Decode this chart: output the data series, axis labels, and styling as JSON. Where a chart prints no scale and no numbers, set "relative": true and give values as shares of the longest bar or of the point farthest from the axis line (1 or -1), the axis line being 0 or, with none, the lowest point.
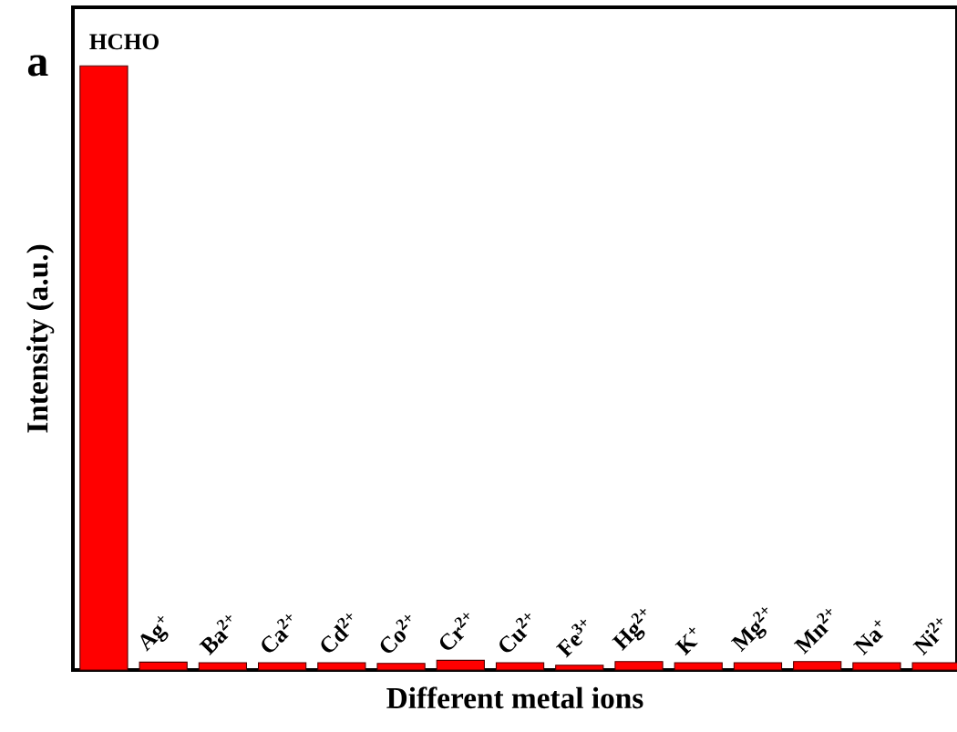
{
  "chart_data": {
    "type": "bar",
    "relative": true,
    "xlabel": "Different metal ions",
    "ylabel": "Intensity (a.u.)",
    "annotations": [
      "a"
    ],
    "categories": [
      "HCHO",
      "Ag$^{+}$",
      "Ba$^{2+}$",
      "Ca$^{2+}$",
      "Cd$^{2+}$",
      "Co$^{2+}$",
      "Cr$^{2+}$",
      "Cu$^{2+}$",
      "Fe$^{3+}$",
      "Hg$^{2+}$",
      "K$^{+}$",
      "Mg$^{2+}$",
      "Mn$^{2+}$",
      "Na$^{+}$",
      "Ni$^{2+}$"
    ],
    "values": [
      1,
      0.013,
      0.012,
      0.012,
      0.012,
      0.011,
      0.016,
      0.012,
      0.008,
      0.014,
      0.012,
      0.012,
      0.014,
      0.012,
      0.012
    ],
    "color": "#ff0000"
  }
}
